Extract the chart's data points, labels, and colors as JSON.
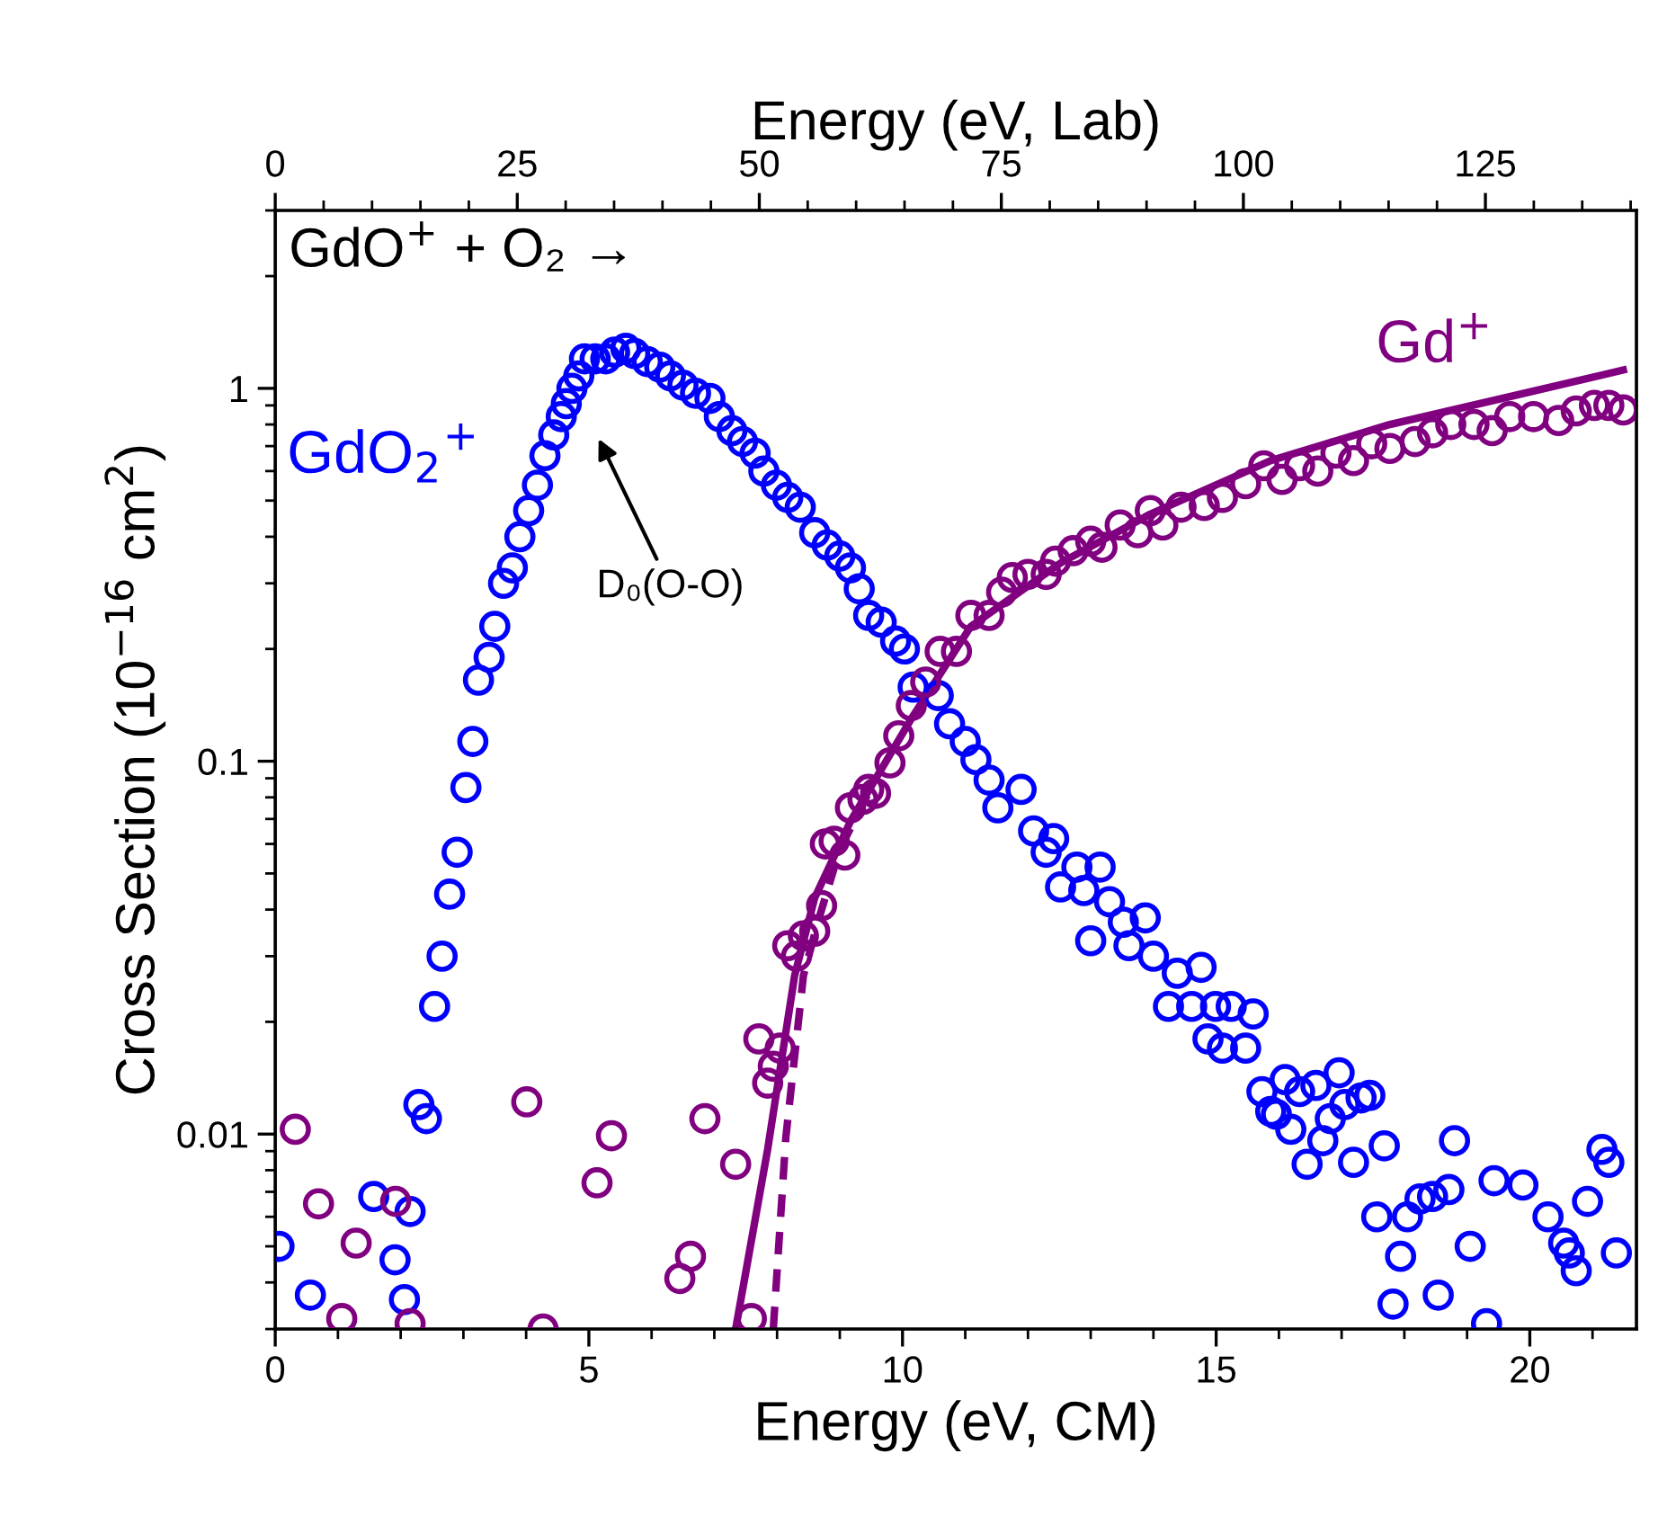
{
  "chart_data": {
    "type": "scatter",
    "xlabel": "Energy (eV, CM)",
    "x2label": "Energy (eV, Lab)",
    "ylabel": "Cross Section (10$^{−16}$ cm$^{2}$)",
    "xlim": [
      0,
      21.7
    ],
    "xticks": [
      0,
      5,
      10,
      15,
      20
    ],
    "x2lim": [
      0,
      140.6
    ],
    "x2ticks": [
      0,
      25,
      50,
      75,
      100,
      125
    ],
    "ylim": [
      0.003,
      3
    ],
    "yticks": [
      0.01,
      0.1,
      1
    ],
    "log": "y",
    "grid": false,
    "annotations": [
      "GdO$^{+}$ + O₂ →",
      "D₀(O-O)"
    ],
    "series": [
      {
        "name": "GdO$_{2}$$^{+}$",
        "marker": "circle",
        "color": "#0000ff",
        "x": [
          0.06,
          0.56,
          1.57,
          1.91,
          2.06,
          2.15,
          2.29,
          2.41,
          2.54,
          2.66,
          2.78,
          2.9,
          3.04,
          3.15,
          3.24,
          3.41,
          3.5,
          3.64,
          3.78,
          3.9,
          4.04,
          4.18,
          4.3,
          4.44,
          4.56,
          4.64,
          4.73,
          4.84,
          4.93,
          5.1,
          5.27,
          5.41,
          5.59,
          5.73,
          5.93,
          6.13,
          6.3,
          6.5,
          6.7,
          6.93,
          7.08,
          7.28,
          7.45,
          7.65,
          7.79,
          7.99,
          8.17,
          8.37,
          8.6,
          8.8,
          9.0,
          9.17,
          9.31,
          9.46,
          9.66,
          9.89,
          10.03,
          10.17,
          10.57,
          10.75,
          11.0,
          11.17,
          11.38,
          11.52,
          11.89,
          12.09,
          12.29,
          12.41,
          12.52,
          12.78,
          12.89,
          13.0,
          13.15,
          13.3,
          13.52,
          13.61,
          13.87,
          14.0,
          14.24,
          14.38,
          14.61,
          14.76,
          14.87,
          14.99,
          15.1,
          15.24,
          15.47,
          15.59,
          15.73,
          15.87,
          15.96,
          16.1,
          16.19,
          16.33,
          16.45,
          16.59,
          16.7,
          16.82,
          16.96,
          17.05,
          17.19,
          17.31,
          17.45,
          17.56,
          17.68,
          17.82,
          17.94,
          18.05,
          18.25,
          18.45,
          18.54,
          18.71,
          18.8,
          19.05,
          19.31,
          19.43,
          19.89,
          20.29,
          20.54,
          20.63,
          20.74,
          20.92,
          21.15,
          21.26,
          21.38
        ],
        "values": [
          0.005,
          0.0037,
          0.0068,
          0.0046,
          0.0036,
          0.0062,
          0.012,
          0.011,
          0.022,
          0.03,
          0.044,
          0.057,
          0.085,
          0.113,
          0.165,
          0.19,
          0.23,
          0.3,
          0.33,
          0.4,
          0.47,
          0.55,
          0.66,
          0.75,
          0.84,
          0.91,
          1.0,
          1.08,
          1.2,
          1.2,
          1.2,
          1.25,
          1.28,
          1.24,
          1.18,
          1.14,
          1.08,
          1.02,
          0.97,
          0.94,
          0.84,
          0.77,
          0.72,
          0.67,
          0.6,
          0.55,
          0.51,
          0.48,
          0.41,
          0.38,
          0.355,
          0.33,
          0.29,
          0.246,
          0.236,
          0.21,
          0.2,
          0.158,
          0.15,
          0.126,
          0.113,
          0.101,
          0.089,
          0.075,
          0.084,
          0.065,
          0.057,
          0.062,
          0.046,
          0.052,
          0.045,
          0.033,
          0.052,
          0.042,
          0.037,
          0.032,
          0.038,
          0.03,
          0.022,
          0.027,
          0.022,
          0.028,
          0.018,
          0.022,
          0.017,
          0.022,
          0.017,
          0.021,
          0.013,
          0.0115,
          0.0113,
          0.014,
          0.0103,
          0.013,
          0.0083,
          0.0135,
          0.0096,
          0.011,
          0.0146,
          0.012,
          0.0084,
          0.0125,
          0.0127,
          0.006,
          0.0093,
          0.0035,
          0.0047,
          0.006,
          0.0067,
          0.0068,
          0.0037,
          0.0071,
          0.0096,
          0.005,
          0.0031,
          0.0075,
          0.0073,
          0.006,
          0.0051,
          0.0048,
          0.0043,
          0.0066,
          0.0091,
          0.0084,
          0.0048
        ]
      },
      {
        "name": "Gd$^{+}$",
        "marker": "circle",
        "color": "#800080",
        "x": [
          0.32,
          0.69,
          1.06,
          1.29,
          1.92,
          2.15,
          4.01,
          4.27,
          5.13,
          5.36,
          6.45,
          6.62,
          6.85,
          7.34,
          7.59,
          7.71,
          7.85,
          7.94,
          8.05,
          8.17,
          8.31,
          8.42,
          8.6,
          8.71,
          8.77,
          8.91,
          9.08,
          9.17,
          9.37,
          9.46,
          9.57,
          9.8,
          9.94,
          10.14,
          10.37,
          10.6,
          10.86,
          11.09,
          11.38,
          11.58,
          11.75,
          12.0,
          12.29,
          12.44,
          12.72,
          13.0,
          13.18,
          13.47,
          13.75,
          13.95,
          14.15,
          14.44,
          14.81,
          15.1,
          15.47,
          15.76,
          16.05,
          16.33,
          16.62,
          16.91,
          17.19,
          17.48,
          17.77,
          18.17,
          18.45,
          18.74,
          19.11,
          19.4,
          19.68,
          20.06,
          20.46,
          20.74,
          21.03,
          21.26,
          21.49
        ],
        "values": [
          0.0103,
          0.0065,
          0.0032,
          0.0051,
          0.0066,
          0.0031,
          0.0122,
          0.003,
          0.0074,
          0.0099,
          0.0041,
          0.0047,
          0.011,
          0.0083,
          0.0032,
          0.018,
          0.0137,
          0.0152,
          0.017,
          0.032,
          0.03,
          0.034,
          0.035,
          0.041,
          0.06,
          0.061,
          0.056,
          0.075,
          0.079,
          0.084,
          0.082,
          0.099,
          0.117,
          0.141,
          0.163,
          0.197,
          0.197,
          0.246,
          0.246,
          0.284,
          0.311,
          0.317,
          0.317,
          0.344,
          0.367,
          0.389,
          0.375,
          0.43,
          0.41,
          0.47,
          0.43,
          0.48,
          0.485,
          0.51,
          0.555,
          0.62,
          0.57,
          0.62,
          0.6,
          0.67,
          0.64,
          0.71,
          0.69,
          0.72,
          0.76,
          0.8,
          0.8,
          0.77,
          0.84,
          0.84,
          0.82,
          0.87,
          0.9,
          0.9,
          0.875
        ]
      },
      {
        "type": "line",
        "marker": "none",
        "color": "#800080",
        "line_style": "solid",
        "x": [
          7.34,
          7.85,
          8.28,
          8.6,
          9.17,
          10.14,
          11.09,
          12.52,
          13.95,
          15.87,
          17.77,
          19.68,
          21.49
        ],
        "values": [
          0.003,
          0.0091,
          0.0266,
          0.043,
          0.069,
          0.13,
          0.23,
          0.34,
          0.46,
          0.64,
          0.8,
          0.95,
          1.12
        ]
      },
      {
        "type": "line",
        "marker": "none",
        "color": "#800080",
        "line_style": "dashed",
        "x": [
          7.94,
          8.14,
          8.42,
          8.65,
          9.0,
          9.5
        ],
        "values": [
          0.003,
          0.0098,
          0.0266,
          0.037,
          0.058,
          0.085
        ]
      }
    ]
  }
}
